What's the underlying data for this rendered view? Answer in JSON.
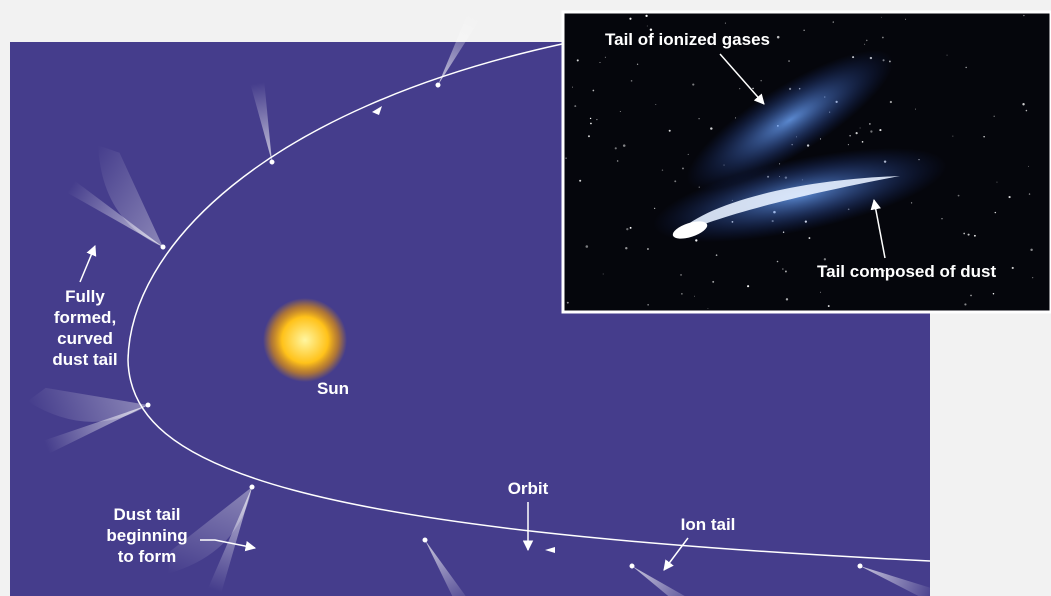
{
  "diagram": {
    "labels": {
      "dust_tail_formed": [
        "Fully",
        "formed,",
        "curved",
        "dust tail"
      ],
      "sun": "Sun",
      "orbit": "Orbit",
      "dust_tail_beginning": [
        "Dust tail",
        "beginning",
        "to form"
      ],
      "ion_tail": "Ion tail"
    }
  },
  "inset": {
    "labels": {
      "ionized_gases": "Tail of ionized gases",
      "dust": "Tail composed of dust"
    }
  }
}
